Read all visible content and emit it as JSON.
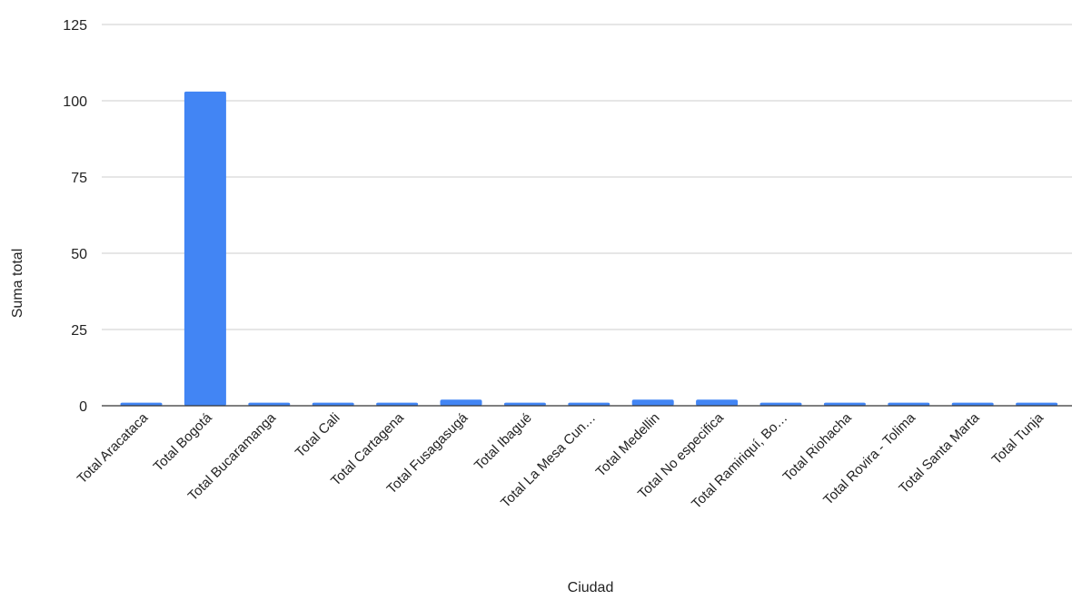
{
  "chart_data": {
    "type": "bar",
    "title": "",
    "xlabel": "Ciudad",
    "ylabel": "Suma total",
    "ylim": [
      0,
      125
    ],
    "yticks": [
      0,
      25,
      50,
      75,
      100,
      125
    ],
    "grid": true,
    "legend": "none",
    "categories": [
      "Total Aracataca",
      "Total Bogotá",
      "Total Bucaramanga",
      "Total Cali",
      "Total Cartagena",
      "Total Fusagasugá",
      "Total Ibagué",
      "Total La Mesa Cun…",
      "Total Medellin",
      "Total No especifica",
      "Total Ramiriquí, Bo…",
      "Total Riohacha",
      "Total Rovira - Tolima",
      "Total Santa Marta",
      "Total Tunja"
    ],
    "series": [
      {
        "values": [
          1,
          103,
          1,
          1,
          1,
          2,
          1,
          1,
          2,
          2,
          1,
          1,
          1,
          1,
          1
        ]
      }
    ],
    "colors": {
      "bar": "#4285f4",
      "grid": "#cccccc",
      "axis": "#333333"
    }
  }
}
